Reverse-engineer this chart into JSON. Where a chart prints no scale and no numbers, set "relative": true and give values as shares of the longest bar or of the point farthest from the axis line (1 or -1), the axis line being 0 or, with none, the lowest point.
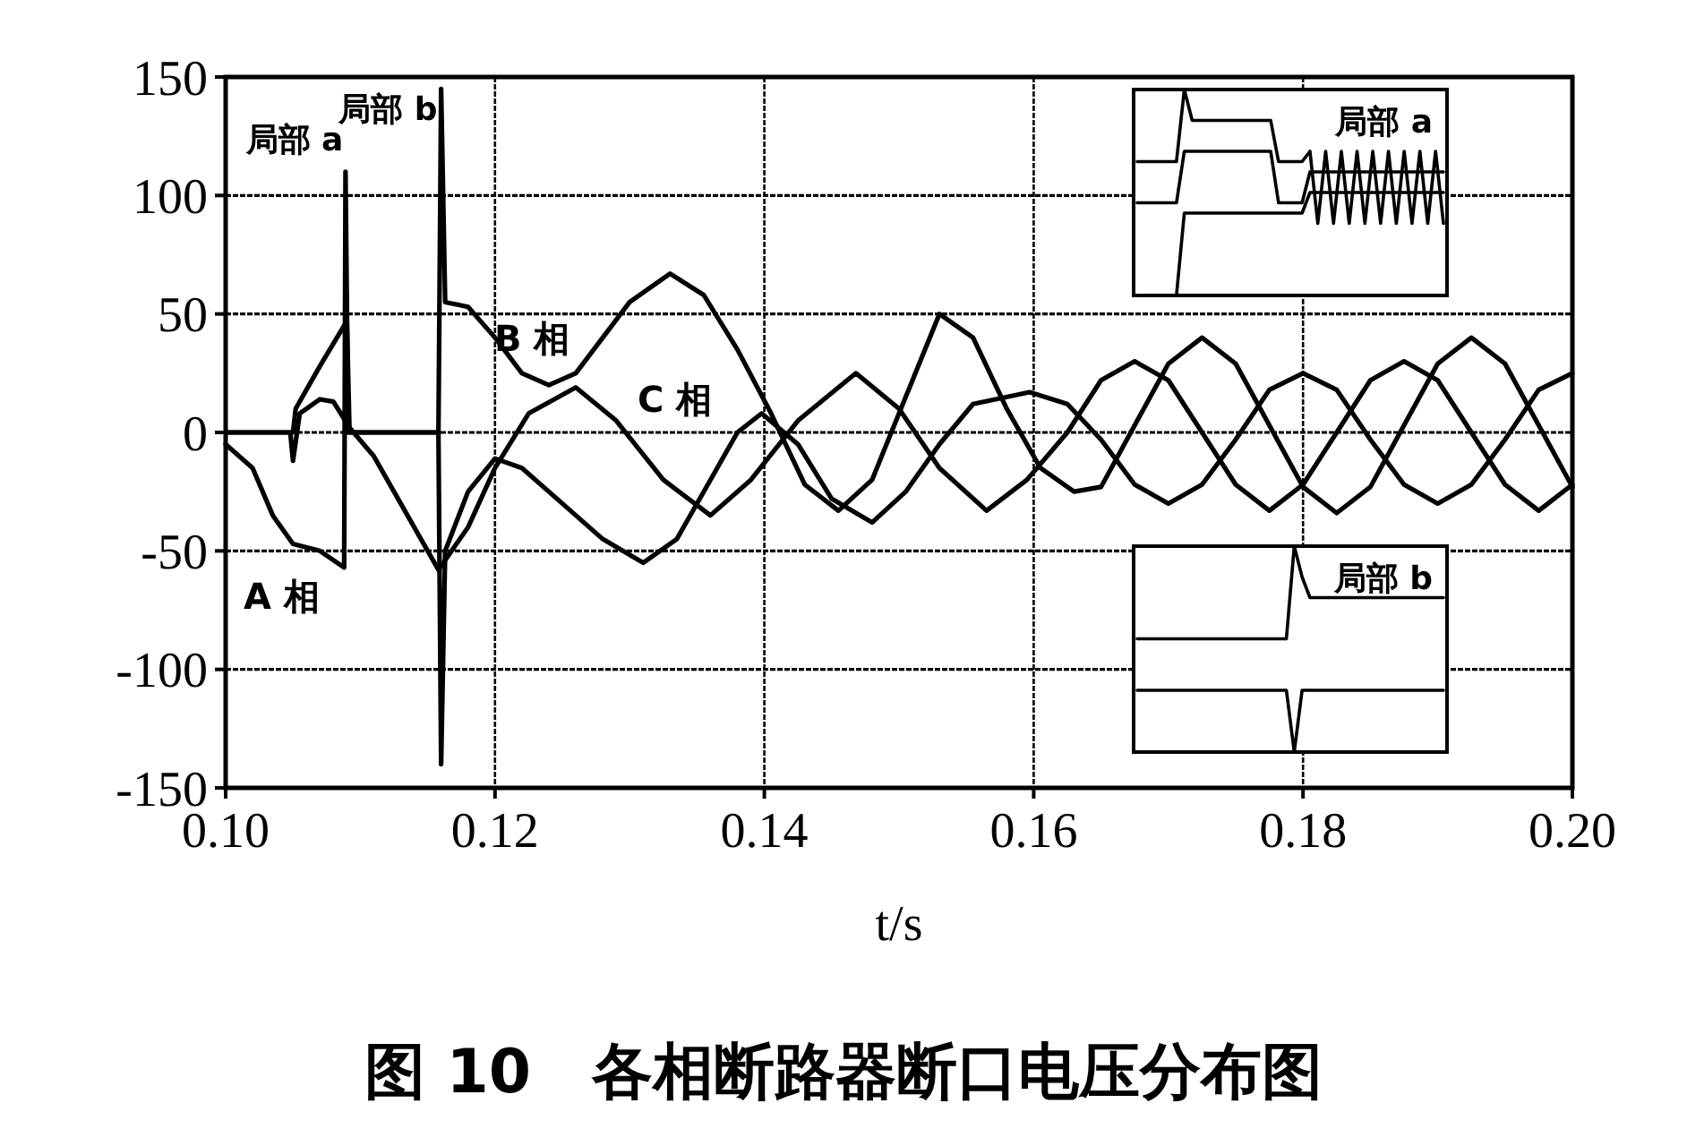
{
  "chart_data": [
    {
      "type": "line",
      "title": "图 10　各相断路器断口电压分布图",
      "xlabel": "t/s",
      "xlim": [
        0.1,
        0.2
      ],
      "xticks": [
        {
          "value": 0.1,
          "label": "0.10"
        },
        {
          "value": 0.12,
          "label": "0.12"
        },
        {
          "value": 0.14,
          "label": "0.14"
        },
        {
          "value": 0.16,
          "label": "0.16"
        },
        {
          "value": 0.18,
          "label": "0.18"
        },
        {
          "value": 0.2,
          "label": "0.20"
        }
      ],
      "ylim": [
        -150,
        150
      ],
      "yticks": [
        -150,
        -100,
        -50,
        0,
        50,
        100,
        150
      ],
      "grid": true,
      "line_style": "solid",
      "marker": "none",
      "series": [
        {
          "name": "A 相",
          "color": "#000000",
          "x": [
            0.1,
            0.102,
            0.1035,
            0.105,
            0.107,
            0.1088,
            0.1089,
            0.1091,
            0.1158,
            0.116,
            0.1163,
            0.118,
            0.12,
            0.122,
            0.125,
            0.128,
            0.131,
            0.1335,
            0.136,
            0.138,
            0.1398,
            0.1425,
            0.145,
            0.148,
            0.1505,
            0.153,
            0.1555,
            0.1597,
            0.1625,
            0.165,
            0.1675,
            0.17,
            0.1725,
            0.175,
            0.1775,
            0.18,
            0.1825,
            0.185,
            0.1875,
            0.19,
            0.1925,
            0.195,
            0.1975,
            0.2
          ],
          "values": [
            -5,
            -15,
            -35,
            -47,
            -50,
            -57,
            110,
            0,
            0,
            -140,
            -50,
            -25,
            -11,
            -15,
            -30,
            -45,
            -55,
            -45,
            -20,
            0,
            8,
            -5,
            -28,
            -38,
            -25,
            -5,
            12,
            17,
            12,
            -3,
            -22,
            -30,
            -22,
            -3,
            18,
            25,
            18,
            -3,
            -22,
            -30,
            -22,
            -3,
            18,
            25
          ]
        },
        {
          "name": "B 相",
          "color": "#000000",
          "x": [
            0.1,
            0.105,
            0.1052,
            0.107,
            0.109,
            0.1092,
            0.1158,
            0.116,
            0.1163,
            0.118,
            0.12,
            0.122,
            0.124,
            0.126,
            0.128,
            0.13,
            0.133,
            0.1355,
            0.138,
            0.1405,
            0.143,
            0.1455,
            0.148,
            0.1505,
            0.153,
            0.1555,
            0.158,
            0.1605,
            0.163,
            0.165,
            0.1675,
            0.17,
            0.1725,
            0.175,
            0.1775,
            0.18,
            0.1825,
            0.185,
            0.1875,
            0.19,
            0.1925,
            0.195,
            0.1975,
            0.2
          ],
          "values": [
            0,
            0,
            10,
            28,
            47,
            0,
            0,
            145,
            55,
            53,
            40,
            25,
            20,
            25,
            40,
            55,
            67,
            58,
            35,
            8,
            -22,
            -33,
            -20,
            15,
            50,
            40,
            10,
            -15,
            -25,
            -23,
            3,
            29,
            40,
            29,
            3,
            -23,
            -34,
            -23,
            3,
            29,
            40,
            29,
            3,
            -23
          ]
        },
        {
          "name": "C 相",
          "color": "#000000",
          "x": [
            0.1,
            0.1048,
            0.105,
            0.1055,
            0.107,
            0.108,
            0.1092,
            0.111,
            0.113,
            0.1158,
            0.118,
            0.12,
            0.1225,
            0.126,
            0.129,
            0.1325,
            0.136,
            0.139,
            0.1425,
            0.1468,
            0.15,
            0.153,
            0.1565,
            0.1595,
            0.1625,
            0.165,
            0.1675,
            0.17,
            0.1725,
            0.175,
            0.1775,
            0.18,
            0.1825,
            0.185,
            0.1875,
            0.19,
            0.1925,
            0.195,
            0.1975,
            0.2
          ],
          "values": [
            0,
            0,
            -12,
            8,
            14,
            13,
            2,
            -10,
            -30,
            -58,
            -40,
            -15,
            8,
            19,
            5,
            -20,
            -35,
            -20,
            5,
            25,
            10,
            -15,
            -33,
            -20,
            0,
            22,
            30,
            22,
            0,
            -22,
            -33,
            -22,
            0,
            22,
            30,
            22,
            0,
            -22,
            -33,
            -22
          ]
        }
      ],
      "annotations": [
        {
          "text": "局部 a",
          "x": 0.109,
          "y": 110
        },
        {
          "text": "局部 b",
          "x": 0.116,
          "y": 145
        }
      ]
    },
    {
      "type": "line",
      "title": "局部 a",
      "relative": true,
      "line_style": "solid",
      "marker": "none",
      "categories": [
        null,
        null,
        null,
        null,
        null,
        null,
        null,
        null,
        null,
        null,
        null,
        null,
        null,
        null,
        null,
        null,
        null,
        null,
        null,
        null,
        null,
        null,
        null,
        null,
        null,
        null,
        null,
        null,
        null,
        null,
        null,
        null,
        null,
        null,
        null,
        null,
        null,
        null,
        null,
        null
      ],
      "series": [
        {
          "color": "#000000",
          "values": [
            0.65,
            0.65,
            0.65,
            0.65,
            0.65,
            0.65,
            1,
            0.85,
            0.85,
            0.85,
            0.85,
            0.85,
            0.85,
            0.85,
            0.85,
            0.85,
            0.85,
            0.85,
            0.65,
            0.65,
            0.65,
            0.65,
            0.7,
            0.35,
            0.7,
            0.35,
            0.7,
            0.35,
            0.7,
            0.35,
            0.7,
            0.35,
            0.7,
            0.35,
            0.7,
            0.35,
            0.7,
            0.35,
            0.7,
            0.35
          ]
        },
        {
          "color": "#000000",
          "values": [
            0.45,
            0.45,
            0.45,
            0.45,
            0.45,
            0.45,
            0.7,
            0.7,
            0.7,
            0.7,
            0.7,
            0.7,
            0.7,
            0.7,
            0.7,
            0.7,
            0.7,
            0.7,
            0.45,
            0.45,
            0.45,
            0.45,
            0.6,
            0.6,
            0.6,
            0.6,
            0.6,
            0.6,
            0.6,
            0.6,
            0.6,
            0.6,
            0.6,
            0.6,
            0.6,
            0.6,
            0.6,
            0.6,
            0.6,
            0.6
          ]
        },
        {
          "color": "#000000",
          "values": [
            0,
            0,
            0,
            0,
            0,
            0,
            0.4,
            0.4,
            0.4,
            0.4,
            0.4,
            0.4,
            0.4,
            0.4,
            0.4,
            0.4,
            0.4,
            0.4,
            0.4,
            0.4,
            0.4,
            0.4,
            0.5,
            0.5,
            0.5,
            0.5,
            0.5,
            0.5,
            0.5,
            0.5,
            0.5,
            0.5,
            0.5,
            0.5,
            0.5,
            0.5,
            0.5,
            0.5,
            0.5,
            0.5
          ]
        }
      ]
    },
    {
      "type": "line",
      "title": "局部 b",
      "relative": true,
      "line_style": "solid",
      "marker": "none",
      "categories": [
        null,
        null,
        null,
        null,
        null,
        null,
        null,
        null,
        null,
        null,
        null,
        null,
        null,
        null,
        null,
        null,
        null,
        null,
        null,
        null,
        null,
        null,
        null,
        null,
        null,
        null,
        null,
        null,
        null,
        null,
        null,
        null,
        null,
        null,
        null,
        null,
        null,
        null,
        null,
        null
      ],
      "series": [
        {
          "color": "#000000",
          "values": [
            0.55,
            0.55,
            0.55,
            0.55,
            0.55,
            0.55,
            0.55,
            0.55,
            0.55,
            0.55,
            0.55,
            0.55,
            0.55,
            0.55,
            0.55,
            0.55,
            0.55,
            0.55,
            0.55,
            0.55,
            1,
            0.85,
            0.75,
            0.75,
            0.75,
            0.75,
            0.75,
            0.75,
            0.75,
            0.75,
            0.75,
            0.75,
            0.75,
            0.75,
            0.75,
            0.75,
            0.75,
            0.75,
            0.75,
            0.75
          ]
        },
        {
          "color": "#000000",
          "values": [
            0.3,
            0.3,
            0.3,
            0.3,
            0.3,
            0.3,
            0.3,
            0.3,
            0.3,
            0.3,
            0.3,
            0.3,
            0.3,
            0.3,
            0.3,
            0.3,
            0.3,
            0.3,
            0.3,
            0.3,
            0,
            0.3,
            0.3,
            0.3,
            0.3,
            0.3,
            0.3,
            0.3,
            0.3,
            0.3,
            0.3,
            0.3,
            0.3,
            0.3,
            0.3,
            0.3,
            0.3,
            0.3,
            0.3,
            0.3
          ]
        }
      ]
    }
  ]
}
